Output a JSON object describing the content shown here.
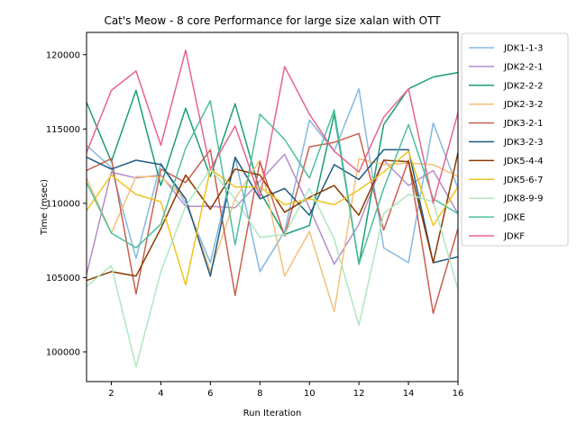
{
  "chart_data": {
    "type": "line",
    "title": "Cat's Meow - 8 core Performance for large size xalan with OTT",
    "xlabel": "Run Iteration",
    "ylabel": "Time (msec)",
    "xlim": [
      1,
      16
    ],
    "ylim": [
      98000,
      121500
    ],
    "xticks": [
      2,
      4,
      6,
      8,
      10,
      12,
      14,
      16
    ],
    "yticks": [
      100000,
      105000,
      110000,
      115000,
      120000
    ],
    "legend_position": "outside-right",
    "x": [
      1,
      2,
      3,
      4,
      5,
      6,
      7,
      8,
      9,
      10,
      11,
      12,
      13,
      14,
      15,
      16
    ],
    "series": [
      {
        "name": "JDK1-1-3",
        "color": "#86b8e0",
        "values": [
          113900,
          112400,
          106300,
          112700,
          110000,
          106000,
          113100,
          105400,
          108100,
          115600,
          113500,
          117700,
          107000,
          106000,
          115400,
          111000
        ]
      },
      {
        "name": "JDK2-2-1",
        "color": "#b48ccb",
        "values": [
          105200,
          112100,
          111700,
          111900,
          109800,
          109800,
          109700,
          111500,
          113300,
          109700,
          105900,
          108600,
          112900,
          111200,
          112200,
          109300
        ]
      },
      {
        "name": "JDK2-2-2",
        "color": "#1b9e77",
        "values": [
          116800,
          112800,
          117600,
          111200,
          116400,
          111800,
          116700,
          110800,
          107900,
          108500,
          116000,
          105900,
          115300,
          117700,
          118500,
          118800
        ]
      },
      {
        "name": "JDK2-3-2",
        "color": "#f4c17a",
        "values": [
          111700,
          108000,
          111800,
          111800,
          110300,
          105400,
          110300,
          112900,
          105100,
          108100,
          102700,
          113000,
          112600,
          112700,
          112600,
          111800
        ]
      },
      {
        "name": "JDK3-2-1",
        "color": "#c8604e",
        "values": [
          112200,
          113000,
          103900,
          112300,
          111400,
          113600,
          103800,
          112800,
          107800,
          113800,
          114100,
          114700,
          108200,
          112900,
          102600,
          108300
        ]
      },
      {
        "name": "JDK3-2-3",
        "color": "#1f5a82",
        "values": [
          113100,
          112300,
          112900,
          112600,
          110300,
          105100,
          113100,
          110300,
          111000,
          109200,
          112600,
          111600,
          113600,
          113600,
          106000,
          106400
        ]
      },
      {
        "name": "JDK5-4-4",
        "color": "#8c3b00",
        "values": [
          104800,
          105400,
          105100,
          108300,
          111900,
          109600,
          112300,
          111900,
          109400,
          110400,
          111200,
          109200,
          112900,
          112800,
          106000,
          113400
        ]
      },
      {
        "name": "JDK5-6-7",
        "color": "#f2c31e",
        "values": [
          109500,
          111900,
          110600,
          110100,
          104500,
          112300,
          111100,
          111100,
          109900,
          110300,
          109900,
          110900,
          112100,
          113500,
          108500,
          111100
        ]
      },
      {
        "name": "JDK8-9-9",
        "color": "#aee8c0",
        "values": [
          104400,
          105800,
          99000,
          105400,
          109800,
          112300,
          110300,
          107700,
          107900,
          111000,
          107600,
          101800,
          109300,
          110600,
          110100,
          104200
        ]
      },
      {
        "name": "JDKE",
        "color": "#4dbf9e",
        "values": [
          111400,
          108000,
          107000,
          108600,
          113700,
          116900,
          107200,
          116000,
          114300,
          111700,
          116300,
          105900,
          111000,
          115300,
          110300,
          109300
        ]
      },
      {
        "name": "JDKF",
        "color": "#e8648c",
        "values": [
          113400,
          117600,
          118900,
          113900,
          120300,
          112300,
          115200,
          110400,
          119200,
          116000,
          113500,
          112100,
          115800,
          117700,
          110000,
          116100
        ]
      }
    ]
  }
}
